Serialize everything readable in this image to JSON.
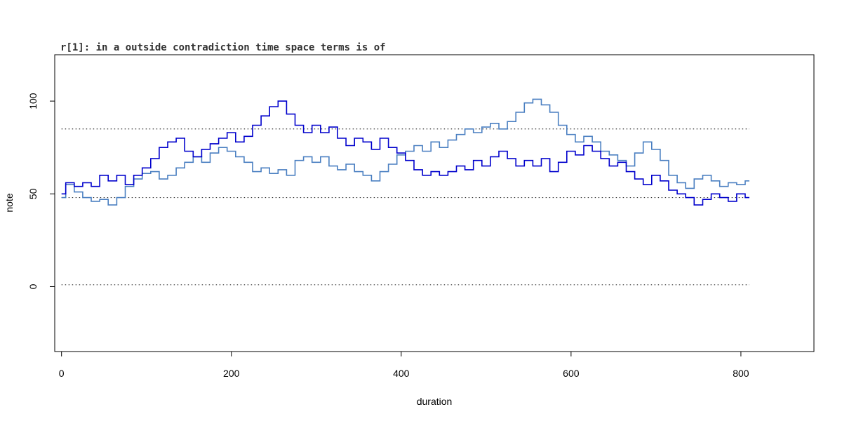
{
  "chart_data": {
    "type": "line",
    "title": "r[1]: in a outside contradiction time space terms is of",
    "xlabel": "duration",
    "ylabel": "note",
    "xlim": [
      -8,
      886
    ],
    "ylim": [
      -35,
      125
    ],
    "xticks": [
      0,
      200,
      400,
      600,
      800
    ],
    "yticks": [
      0,
      50,
      100
    ],
    "grid": false,
    "legend": "none",
    "reference_lines": [
      {
        "y": 1,
        "x": [
          0,
          810
        ],
        "style": "dotted",
        "color": "#333333"
      },
      {
        "y": 48,
        "x": [
          0,
          810
        ],
        "style": "dotted",
        "color": "#333333"
      },
      {
        "y": 85,
        "x": [
          0,
          810
        ],
        "style": "dotted",
        "color": "#333333"
      }
    ],
    "series": [
      {
        "color": "#0000cc",
        "step": true,
        "x": [
          0,
          5,
          15,
          25,
          35,
          45,
          55,
          65,
          75,
          85,
          95,
          105,
          115,
          125,
          135,
          145,
          155,
          165,
          175,
          185,
          195,
          205,
          215,
          225,
          235,
          245,
          255,
          265,
          275,
          285,
          295,
          305,
          315,
          325,
          335,
          345,
          355,
          365,
          375,
          385,
          395,
          405,
          415,
          425,
          435,
          445,
          455,
          465,
          475,
          485,
          495,
          505,
          515,
          525,
          535,
          545,
          555,
          565,
          575,
          585,
          595,
          605,
          615,
          625,
          635,
          645,
          655,
          665,
          675,
          685,
          695,
          705,
          715,
          725,
          735,
          745,
          755,
          765,
          775,
          785,
          795,
          805,
          810
        ],
        "y": [
          50,
          56,
          54,
          56,
          54,
          60,
          57,
          60,
          55,
          60,
          64,
          69,
          75,
          78,
          80,
          73,
          70,
          74,
          77,
          80,
          83,
          78,
          81,
          87,
          92,
          97,
          100,
          93,
          87,
          83,
          87,
          83,
          86,
          80,
          76,
          80,
          78,
          74,
          80,
          75,
          72,
          68,
          63,
          60,
          62,
          60,
          62,
          65,
          63,
          68,
          65,
          70,
          73,
          69,
          65,
          68,
          65,
          69,
          62,
          67,
          73,
          71,
          76,
          73,
          69,
          65,
          67,
          62,
          58,
          55,
          60,
          57,
          52,
          50,
          48,
          44,
          47,
          50,
          48,
          46,
          50,
          48,
          48
        ]
      },
      {
        "color": "#4a7fc1",
        "step": true,
        "x": [
          0,
          5,
          15,
          25,
          35,
          45,
          55,
          65,
          75,
          85,
          95,
          105,
          115,
          125,
          135,
          145,
          155,
          165,
          175,
          185,
          195,
          205,
          215,
          225,
          235,
          245,
          255,
          265,
          275,
          285,
          295,
          305,
          315,
          325,
          335,
          345,
          355,
          365,
          375,
          385,
          395,
          405,
          415,
          425,
          435,
          445,
          455,
          465,
          475,
          485,
          495,
          505,
          515,
          525,
          535,
          545,
          555,
          565,
          575,
          585,
          595,
          605,
          615,
          625,
          635,
          645,
          655,
          665,
          675,
          685,
          695,
          705,
          715,
          725,
          735,
          745,
          755,
          765,
          775,
          785,
          795,
          805,
          810
        ],
        "y": [
          48,
          55,
          51,
          48,
          46,
          47,
          44,
          48,
          54,
          58,
          61,
          62,
          58,
          60,
          64,
          67,
          70,
          67,
          72,
          75,
          73,
          70,
          67,
          62,
          64,
          61,
          63,
          60,
          68,
          70,
          67,
          70,
          65,
          63,
          66,
          62,
          60,
          57,
          62,
          66,
          71,
          73,
          76,
          73,
          78,
          75,
          79,
          82,
          85,
          83,
          86,
          88,
          85,
          89,
          94,
          99,
          101,
          98,
          94,
          87,
          82,
          78,
          81,
          78,
          73,
          71,
          68,
          65,
          72,
          78,
          74,
          68,
          60,
          56,
          53,
          58,
          60,
          57,
          54,
          56,
          55,
          57,
          57
        ]
      }
    ]
  }
}
